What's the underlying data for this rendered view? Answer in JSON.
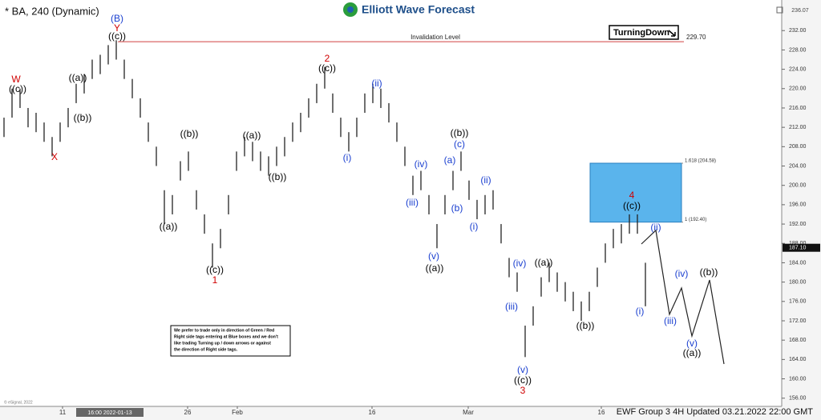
{
  "chart_data": {
    "type": "ohlc",
    "title": "* BA, 240 (Dynamic)",
    "logo": "Elliott Wave Forecast",
    "footer": "EWF Group 3 4H Updated 03.21.2022 22:00 GMT",
    "copyright": "© eSignal, 2022",
    "corner_price": "236.07",
    "x": [
      0,
      1,
      2,
      3,
      4,
      5,
      6,
      7,
      8,
      9,
      10,
      11,
      12,
      13,
      14,
      15,
      16,
      17,
      18,
      19,
      20,
      21,
      22,
      23,
      24,
      25,
      26,
      27,
      28,
      29,
      30,
      31,
      32,
      33,
      34,
      35,
      36,
      37,
      38,
      39,
      40,
      41,
      42,
      43,
      44,
      45,
      46,
      47,
      48,
      49,
      50,
      51,
      52,
      53,
      54,
      55,
      56,
      57,
      58,
      59,
      60,
      61,
      62,
      63,
      64,
      65,
      66,
      67,
      68,
      69,
      70,
      71,
      72,
      73,
      74,
      75,
      76,
      77,
      78,
      79,
      80
    ],
    "high": [
      214,
      220,
      220,
      216,
      215,
      213,
      210,
      213,
      216,
      221,
      223,
      226,
      227,
      229,
      230,
      226,
      222,
      218,
      213,
      208,
      199,
      198,
      205,
      207,
      199,
      194,
      188,
      191,
      198,
      207,
      210,
      209,
      207,
      206,
      208,
      210,
      213,
      215,
      218,
      221,
      224.5,
      219,
      214,
      211,
      214,
      219,
      221,
      220,
      217,
      213,
      208,
      202,
      203,
      198,
      192,
      198,
      203,
      207,
      201,
      197,
      198,
      199,
      192,
      185,
      182,
      171,
      175,
      181,
      184,
      182,
      180,
      178,
      176,
      178,
      183,
      188,
      191,
      192,
      194,
      194,
      184
    ],
    "low": [
      210,
      214,
      216,
      212,
      211,
      209,
      206,
      209,
      212,
      217,
      219,
      222,
      223,
      225,
      226,
      222,
      218,
      214,
      209,
      204,
      192,
      194,
      201,
      203,
      195,
      190,
      183,
      187,
      194,
      203,
      206,
      205,
      203,
      202,
      204,
      206,
      209,
      211,
      214,
      217,
      220,
      215,
      210,
      207,
      210,
      215,
      217,
      216,
      213,
      209,
      204,
      198,
      199,
      194,
      187,
      194,
      199,
      203,
      197,
      193,
      194,
      195,
      188,
      181,
      178,
      164.5,
      171,
      177,
      180,
      178,
      176,
      174,
      172,
      174,
      179,
      184,
      187,
      188,
      190,
      190,
      175
    ],
    "xlim": [
      -0.5,
      97
    ],
    "ylim": [
      154.3,
      237
    ],
    "xticks": [
      {
        "value": 7.3,
        "label": "11"
      },
      {
        "value": 22.9,
        "label": "26"
      },
      {
        "value": 29.1,
        "label": "Feb"
      },
      {
        "value": 45.9,
        "label": "16"
      },
      {
        "value": 57.9,
        "label": "Mar"
      },
      {
        "value": 74.5,
        "label": "16"
      }
    ],
    "crosshair": {
      "value": 13.2,
      "label": "16:00 2022-01-13"
    },
    "yticks": [
      {
        "value": 156,
        "label": "156.00"
      },
      {
        "value": 160,
        "label": "160.00"
      },
      {
        "value": 164,
        "label": "164.00"
      },
      {
        "value": 168,
        "label": "168.00"
      },
      {
        "value": 172,
        "label": "172.00"
      },
      {
        "value": 176,
        "label": "176.00"
      },
      {
        "value": 180,
        "label": "180.00"
      },
      {
        "value": 184,
        "label": "184.00"
      },
      {
        "value": 188,
        "label": "188.00"
      },
      {
        "value": 192,
        "label": "192.00"
      },
      {
        "value": 196,
        "label": "196.00"
      },
      {
        "value": 200,
        "label": "200.00"
      },
      {
        "value": 204,
        "label": "204.00"
      },
      {
        "value": 208,
        "label": "208.00"
      },
      {
        "value": 212,
        "label": "212.00"
      },
      {
        "value": 216,
        "label": "216.00"
      },
      {
        "value": 220,
        "label": "220.00"
      },
      {
        "value": 224,
        "label": "224.00"
      },
      {
        "value": 228,
        "label": "228.00"
      },
      {
        "value": 232,
        "label": "232.00"
      }
    ],
    "last_price": {
      "value": 187.1,
      "label": "187.10"
    },
    "invalidation": {
      "text": "Invalidation Level",
      "value": 229.7,
      "label": "229.70"
    },
    "fib_levels": [
      {
        "value": 204.58,
        "label": "1.618 (204.58)"
      },
      {
        "value": 192.4,
        "label": "1 (192.40)"
      }
    ],
    "turning": "TurningDown",
    "disclaimer": [
      "We prefer to trade only in direction of Green / Red",
      "Right side tags entering at Blue boxes and we don't",
      "like trading Turning up / down arrows or against",
      "the direction of Right side tags."
    ],
    "wave_labels": [
      {
        "text": "W",
        "color": "#d00000"
      },
      {
        "text": "((c))",
        "color": "#000000"
      },
      {
        "text": "X",
        "color": "#d00000"
      },
      {
        "text": "((a))",
        "color": "#000000"
      },
      {
        "text": "((b))",
        "color": "#000000"
      },
      {
        "text": "(B)",
        "color": "#1a3fd0"
      },
      {
        "text": "Y",
        "color": "#d00000"
      },
      {
        "text": "((c))",
        "color": "#000000"
      },
      {
        "text": "((b))",
        "color": "#000000"
      },
      {
        "text": "((a))",
        "color": "#000000"
      },
      {
        "text": "((a))",
        "color": "#000000"
      },
      {
        "text": "((b))",
        "color": "#000000"
      },
      {
        "text": "((c))",
        "color": "#000000"
      },
      {
        "text": "1",
        "color": "#d00000"
      },
      {
        "text": "2",
        "color": "#d00000"
      },
      {
        "text": "((c))",
        "color": "#000000"
      },
      {
        "text": "(i)",
        "color": "#1a3fd0"
      },
      {
        "text": "(ii)",
        "color": "#1a3fd0"
      },
      {
        "text": "(iv)",
        "color": "#1a3fd0"
      },
      {
        "text": "(iii)",
        "color": "#1a3fd0"
      },
      {
        "text": "(v)",
        "color": "#1a3fd0"
      },
      {
        "text": "((a))",
        "color": "#000000"
      },
      {
        "text": "((b))",
        "color": "#000000"
      },
      {
        "text": "(c)",
        "color": "#1a3fd0"
      },
      {
        "text": "(a)",
        "color": "#1a3fd0"
      },
      {
        "text": "(b)",
        "color": "#1a3fd0"
      },
      {
        "text": "(ii)",
        "color": "#1a3fd0"
      },
      {
        "text": "(i)",
        "color": "#1a3fd0"
      },
      {
        "text": "(iv)",
        "color": "#1a3fd0"
      },
      {
        "text": "((a))",
        "color": "#000000"
      },
      {
        "text": "(iii)",
        "color": "#1a3fd0"
      },
      {
        "text": "(v)",
        "color": "#1a3fd0"
      },
      {
        "text": "((c))",
        "color": "#000000"
      },
      {
        "text": "3",
        "color": "#d00000"
      },
      {
        "text": "((b))",
        "color": "#000000"
      },
      {
        "text": "4",
        "color": "#d00000"
      },
      {
        "text": "((c))",
        "color": "#000000"
      },
      {
        "text": "(ii)",
        "color": "#1a3fd0"
      },
      {
        "text": "(i)",
        "color": "#1a3fd0"
      },
      {
        "text": "(iv)",
        "color": "#1a3fd0"
      },
      {
        "text": "(iii)",
        "color": "#1a3fd0"
      },
      {
        "text": "(v)",
        "color": "#1a3fd0"
      },
      {
        "text": "((b))",
        "color": "#000000"
      },
      {
        "text": "((a))",
        "color": "#000000"
      }
    ]
  }
}
